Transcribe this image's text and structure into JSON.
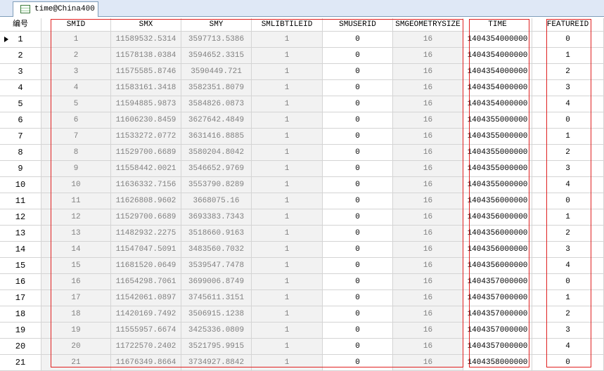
{
  "tab": {
    "title": "time@China400"
  },
  "table": {
    "columns": [
      "编号",
      "SMID",
      "SMX",
      "SMY",
      "SMLIBTILEID",
      "SMUSERID",
      "SMGEOMETRYSIZE",
      "TIME",
      "FEATUREID"
    ],
    "rows": [
      [
        "1",
        "1",
        "11589532.5314",
        "3597713.5386",
        "1",
        "0",
        "16",
        "1404354000000",
        "0"
      ],
      [
        "2",
        "2",
        "11578138.0384",
        "3594652.3315",
        "1",
        "0",
        "16",
        "1404354000000",
        "1"
      ],
      [
        "3",
        "3",
        "11575585.8746",
        "3590449.721",
        "1",
        "0",
        "16",
        "1404354000000",
        "2"
      ],
      [
        "4",
        "4",
        "11583161.3418",
        "3582351.8079",
        "1",
        "0",
        "16",
        "1404354000000",
        "3"
      ],
      [
        "5",
        "5",
        "11594885.9873",
        "3584826.0873",
        "1",
        "0",
        "16",
        "1404354000000",
        "4"
      ],
      [
        "6",
        "6",
        "11606230.8459",
        "3627642.4849",
        "1",
        "0",
        "16",
        "1404355000000",
        "0"
      ],
      [
        "7",
        "7",
        "11533272.0772",
        "3631416.8885",
        "1",
        "0",
        "16",
        "1404355000000",
        "1"
      ],
      [
        "8",
        "8",
        "11529700.6689",
        "3580204.8042",
        "1",
        "0",
        "16",
        "1404355000000",
        "2"
      ],
      [
        "9",
        "9",
        "11558442.0021",
        "3546652.9769",
        "1",
        "0",
        "16",
        "1404355000000",
        "3"
      ],
      [
        "10",
        "10",
        "11636332.7156",
        "3553790.8289",
        "1",
        "0",
        "16",
        "1404355000000",
        "4"
      ],
      [
        "11",
        "11",
        "11626808.9602",
        "3668075.16",
        "1",
        "0",
        "16",
        "1404356000000",
        "0"
      ],
      [
        "12",
        "12",
        "11529700.6689",
        "3693383.7343",
        "1",
        "0",
        "16",
        "1404356000000",
        "1"
      ],
      [
        "13",
        "13",
        "11482932.2275",
        "3518660.9163",
        "1",
        "0",
        "16",
        "1404356000000",
        "2"
      ],
      [
        "14",
        "14",
        "11547047.5091",
        "3483560.7032",
        "1",
        "0",
        "16",
        "1404356000000",
        "3"
      ],
      [
        "15",
        "15",
        "11681520.0649",
        "3539547.7478",
        "1",
        "0",
        "16",
        "1404356000000",
        "4"
      ],
      [
        "16",
        "16",
        "11654298.7061",
        "3699006.8749",
        "1",
        "0",
        "16",
        "1404357000000",
        "0"
      ],
      [
        "17",
        "17",
        "11542061.0897",
        "3745611.3151",
        "1",
        "0",
        "16",
        "1404357000000",
        "1"
      ],
      [
        "18",
        "18",
        "11420169.7492",
        "3506915.1238",
        "1",
        "0",
        "16",
        "1404357000000",
        "2"
      ],
      [
        "19",
        "19",
        "11555957.6674",
        "3425336.0809",
        "1",
        "0",
        "16",
        "1404357000000",
        "3"
      ],
      [
        "20",
        "20",
        "11722570.2402",
        "3521795.9915",
        "1",
        "0",
        "16",
        "1404357000000",
        "4"
      ],
      [
        "21",
        "21",
        "11676349.8664",
        "3734927.8842",
        "1",
        "0",
        "16",
        "1404358000000",
        "0"
      ]
    ]
  }
}
